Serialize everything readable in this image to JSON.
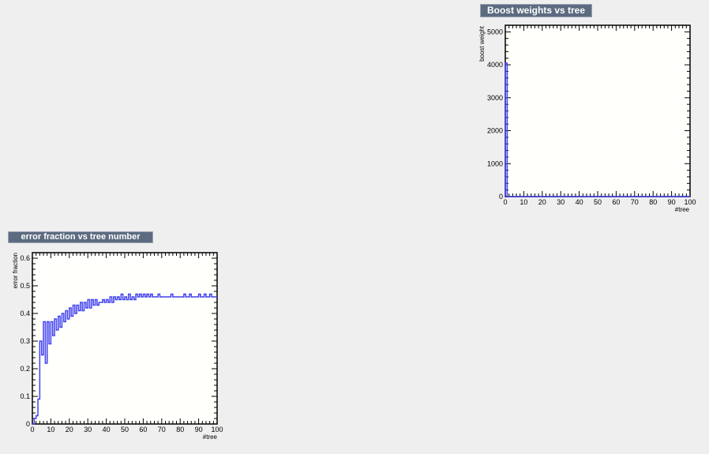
{
  "colors": {
    "background": "#efefef",
    "frame_fill": "#fffffc",
    "title_box": "#5c6b80",
    "series_line": "#4040f0"
  },
  "chart_data": [
    {
      "type": "line",
      "title": "Boost weights vs tree",
      "xlabel": "#tree",
      "ylabel": "boost weight",
      "xlim": [
        0,
        100
      ],
      "ylim": [
        0,
        5200
      ],
      "x_ticks": [
        "0",
        "10",
        "20",
        "30",
        "40",
        "50",
        "60",
        "70",
        "80",
        "90",
        "100"
      ],
      "y_ticks": [
        "0",
        "1000",
        "2000",
        "3000",
        "4000",
        "5000"
      ],
      "x": [
        0,
        1,
        2,
        3,
        4,
        5,
        10,
        20,
        30,
        40,
        50,
        60,
        70,
        80,
        90,
        100
      ],
      "values": [
        4050,
        0,
        0,
        0,
        0,
        0,
        0,
        0,
        0,
        0,
        0,
        0,
        0,
        0,
        0,
        0
      ],
      "grid": false
    },
    {
      "type": "line",
      "title": "error fraction vs tree number",
      "xlabel": "#tree",
      "ylabel": "error fraction",
      "xlim": [
        0,
        100
      ],
      "ylim": [
        0,
        0.62
      ],
      "x_ticks": [
        "0",
        "10",
        "20",
        "30",
        "40",
        "50",
        "60",
        "70",
        "80",
        "90",
        "100"
      ],
      "y_ticks": [
        "0",
        "0.1",
        "0.2",
        "0.3",
        "0.4",
        "0.5",
        "0.6"
      ],
      "x": [
        0,
        1,
        2,
        3,
        4,
        5,
        6,
        7,
        8,
        9,
        10,
        11,
        12,
        13,
        14,
        15,
        16,
        17,
        18,
        19,
        20,
        21,
        22,
        23,
        24,
        25,
        26,
        27,
        28,
        29,
        30,
        31,
        32,
        33,
        34,
        35,
        36,
        37,
        38,
        39,
        40,
        41,
        42,
        43,
        44,
        45,
        46,
        47,
        48,
        49,
        50,
        51,
        52,
        53,
        54,
        55,
        56,
        57,
        58,
        59,
        60,
        61,
        62,
        63,
        64,
        65,
        66,
        67,
        68,
        69,
        70,
        71,
        72,
        73,
        74,
        75,
        76,
        77,
        78,
        79,
        80,
        81,
        82,
        83,
        84,
        85,
        86,
        87,
        88,
        89,
        90,
        91,
        92,
        93,
        94,
        95,
        96,
        97,
        98,
        99
      ],
      "values": [
        0.0,
        0.02,
        0.03,
        0.09,
        0.3,
        0.25,
        0.37,
        0.22,
        0.37,
        0.29,
        0.37,
        0.32,
        0.38,
        0.34,
        0.39,
        0.35,
        0.4,
        0.37,
        0.41,
        0.38,
        0.42,
        0.39,
        0.43,
        0.4,
        0.43,
        0.41,
        0.44,
        0.41,
        0.44,
        0.42,
        0.45,
        0.42,
        0.45,
        0.43,
        0.45,
        0.43,
        0.44,
        0.44,
        0.45,
        0.44,
        0.45,
        0.44,
        0.46,
        0.44,
        0.46,
        0.45,
        0.46,
        0.45,
        0.47,
        0.45,
        0.46,
        0.45,
        0.47,
        0.45,
        0.46,
        0.45,
        0.47,
        0.46,
        0.47,
        0.46,
        0.47,
        0.46,
        0.47,
        0.46,
        0.47,
        0.46,
        0.46,
        0.46,
        0.47,
        0.46,
        0.46,
        0.46,
        0.46,
        0.46,
        0.46,
        0.47,
        0.46,
        0.46,
        0.46,
        0.46,
        0.46,
        0.46,
        0.47,
        0.46,
        0.46,
        0.47,
        0.46,
        0.46,
        0.46,
        0.46,
        0.47,
        0.46,
        0.46,
        0.47,
        0.46,
        0.46,
        0.47,
        0.46,
        0.46,
        0.46
      ],
      "grid": false
    }
  ]
}
